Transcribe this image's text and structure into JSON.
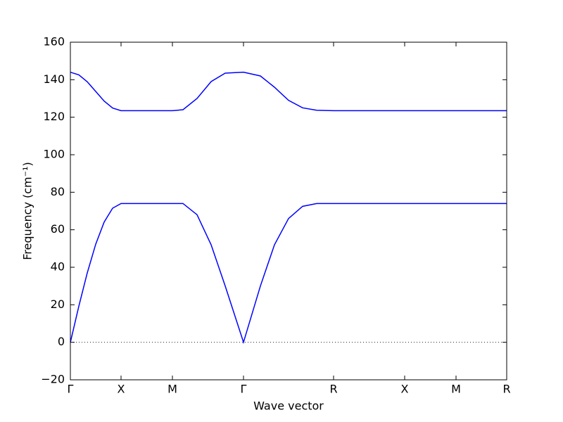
{
  "chart_data": {
    "type": "line",
    "x_label": "Wave vector",
    "y_label": "Frequency (cm⁻¹)",
    "x": [
      0,
      0.12,
      0.24,
      0.36,
      0.48,
      0.6,
      0.72,
      1.45,
      1.6,
      1.8,
      2.0,
      2.2,
      2.46,
      2.7,
      2.9,
      3.1,
      3.3,
      3.5,
      3.74,
      4.75,
      5.48,
      6.2
    ],
    "series": [
      {
        "color": "#0000ff",
        "values": [
          0,
          19.2,
          37,
          52.3,
          64.1,
          71.5,
          74,
          74,
          74,
          68,
          52,
          30,
          0,
          30,
          52,
          66,
          72.5,
          74,
          74,
          74,
          74,
          74
        ]
      },
      {
        "color": "#0000ff",
        "values": [
          144,
          142.6,
          138.9,
          133.75,
          128.6,
          124.9,
          123.5,
          123.5,
          124,
          130,
          139,
          143.5,
          144,
          142,
          136,
          129,
          125,
          123.7,
          123.5,
          123.5,
          123.5,
          123.5
        ]
      }
    ],
    "xlim": [
      0,
      6.2
    ],
    "xticks": [
      {
        "value": 0,
        "label": "Γ"
      },
      {
        "value": 0.72,
        "label": "X"
      },
      {
        "value": 1.45,
        "label": "M"
      },
      {
        "value": 2.46,
        "label": "Γ"
      },
      {
        "value": 3.74,
        "label": "R"
      },
      {
        "value": 4.75,
        "label": "X"
      },
      {
        "value": 5.48,
        "label": "M"
      },
      {
        "value": 6.2,
        "label": "R"
      }
    ],
    "ylim": [
      -20,
      160
    ],
    "yticks": [
      {
        "value": -20,
        "label": "−20"
      },
      0,
      20,
      40,
      60,
      80,
      100,
      120,
      140,
      160
    ],
    "hlines": [
      0
    ],
    "grid": false
  }
}
